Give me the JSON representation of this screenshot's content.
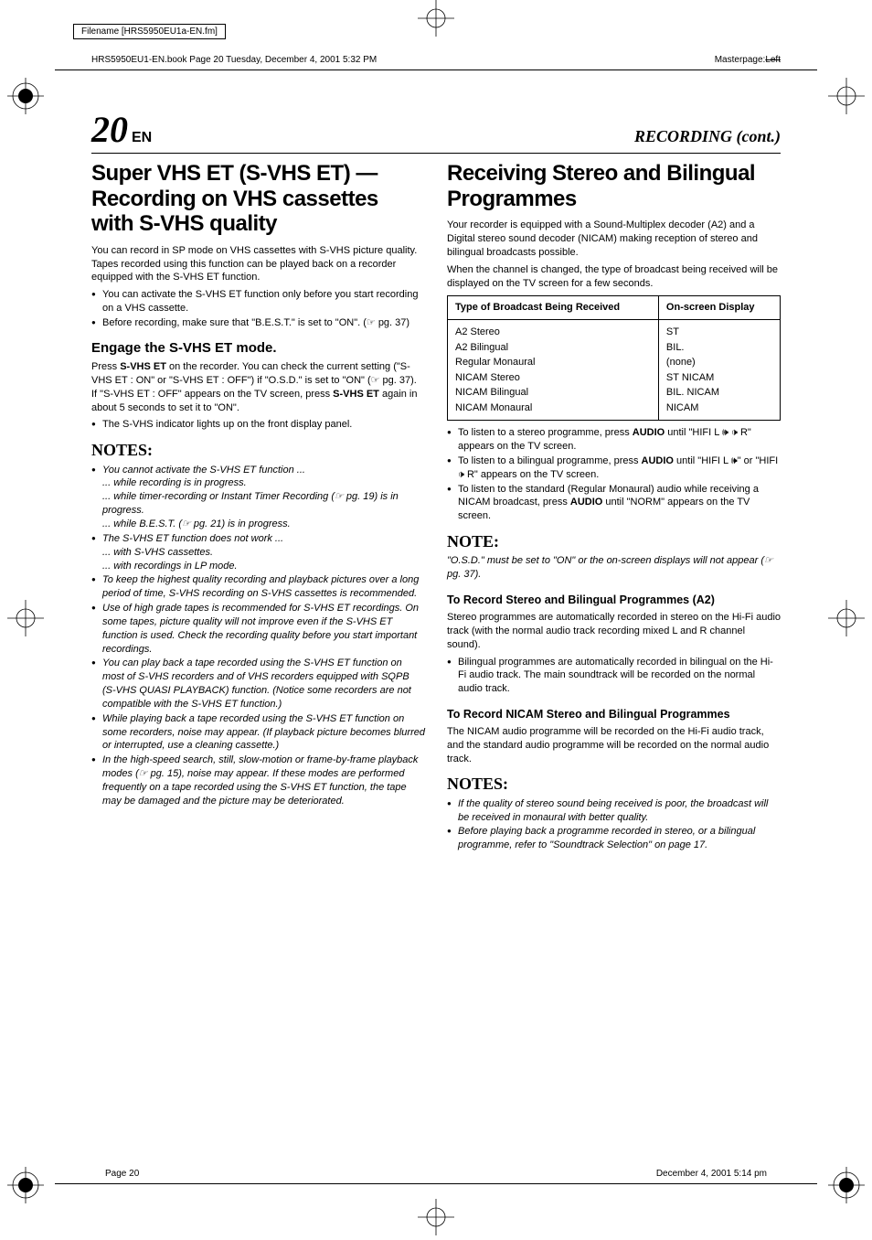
{
  "meta": {
    "filename": "Filename [HRS5950EU1a-EN.fm]",
    "book_header": "HRS5950EU1-EN.book  Page 20  Tuesday, December 4, 2001  5:32 PM",
    "masterpage_prefix": "Masterpage:",
    "masterpage_strike": "Left",
    "footer_left": "Page 20",
    "footer_right": "December 4, 2001  5:14 pm"
  },
  "header": {
    "page_number": "20",
    "page_suffix": "EN",
    "section": "RECORDING (cont.)"
  },
  "left": {
    "h1": "Super VHS ET (S-VHS ET) — Recording on VHS cassettes with S-VHS quality",
    "intro": "You can record in SP mode on VHS cassettes with S-VHS picture quality. Tapes recorded using this function can be played back on a recorder equipped with the S-VHS ET function.",
    "intro_bullets": [
      "You can activate the S-VHS ET function only before you start recording on a VHS cassette.",
      "Before recording, make sure that \"B.E.S.T.\" is set to \"ON\". (☞ pg. 37)"
    ],
    "engage_h2": "Engage the S-VHS ET mode.",
    "engage_p1": "Press S-VHS ET on the recorder. You can check the current setting (\"S-VHS ET : ON\" or \"S-VHS ET : OFF\") if \"O.S.D.\" is set to \"ON\" (☞ pg. 37). If \"S-VHS ET : OFF\" appears on the TV screen, press S-VHS ET again in about 5 seconds to set it to \"ON\".",
    "engage_bullets": [
      "The S-VHS indicator lights up on the front display panel."
    ],
    "notes_label": "NOTES:",
    "notes": [
      "You cannot activate the S-VHS ET function ...\n... while recording is in progress.\n... while timer-recording or Instant Timer Recording (☞ pg. 19) is in progress.\n... while B.E.S.T. (☞ pg. 21) is in progress.",
      "The S-VHS ET function does not work ...\n... with S-VHS cassettes.\n... with recordings in LP mode.",
      "To keep the highest quality recording and playback pictures over a long period of time, S-VHS recording on S-VHS cassettes is recommended.",
      "Use of high grade tapes is recommended for S-VHS ET recordings. On some tapes, picture quality will not improve even if the S-VHS ET function is used. Check the recording quality before you start important recordings.",
      "You can play back a tape recorded using the S-VHS ET function on most of S-VHS recorders and of VHS recorders equipped with SQPB (S-VHS QUASI PLAYBACK) function. (Notice some recorders are not compatible with the S-VHS ET function.)",
      "While playing back a tape recorded using the S-VHS ET function on some recorders, noise may appear. (If playback picture becomes blurred or interrupted, use a cleaning cassette.)",
      "In the high-speed search, still, slow-motion or frame-by-frame playback modes (☞ pg. 15), noise may appear. If these modes are performed frequently on a tape recorded using the S-VHS ET function, the tape may be damaged and the picture may be deteriorated."
    ]
  },
  "right": {
    "h1": "Receiving Stereo and Bilingual Programmes",
    "intro1": "Your recorder is equipped with a Sound-Multiplex decoder (A2) and a Digital stereo sound decoder (NICAM) making reception of stereo and bilingual broadcasts possible.",
    "intro2": "When the channel is changed, the type of broadcast being received will be displayed on the TV screen for a few seconds.",
    "table": {
      "th1": "Type of Broadcast Being Received",
      "th2": "On-screen Display",
      "rows": [
        [
          "A2 Stereo",
          "ST"
        ],
        [
          "A2 Bilingual",
          "BIL."
        ],
        [
          "Regular Monaural",
          "(none)"
        ],
        [
          "NICAM Stereo",
          "ST NICAM"
        ],
        [
          "NICAM Bilingual",
          "BIL. NICAM"
        ],
        [
          "NICAM Monaural",
          "NICAM"
        ]
      ]
    },
    "listen_bullets": [
      "To listen to a stereo programme, press AUDIO until \"HIFI L 🕪 🕩 R\" appears on the TV screen.",
      "To listen to a bilingual programme, press AUDIO until \"HIFI L 🕪\" or \"HIFI 🕩 R\" appears on the TV screen.",
      "To listen to the standard (Regular Monaural) audio while receiving a NICAM broadcast, press AUDIO until \"NORM\" appears on the TV screen."
    ],
    "note_label": "NOTE:",
    "note_text": "\"O.S.D.\" must be set to \"ON\" or the on-screen displays will not appear (☞ pg. 37).",
    "sub1_h": "To Record Stereo and Bilingual Programmes (A2)",
    "sub1_p": "Stereo programmes are automatically recorded in stereo on the Hi-Fi audio track (with the normal audio track recording mixed L and R channel sound).",
    "sub1_bullets": [
      "Bilingual programmes are automatically recorded in bilingual on the Hi-Fi audio track. The main soundtrack will be recorded on the normal audio track."
    ],
    "sub2_h": "To Record NICAM Stereo and Bilingual Programmes",
    "sub2_p": "The NICAM audio programme will be recorded on the Hi-Fi audio track, and the standard audio programme will be recorded on the normal audio track.",
    "notes2_label": "NOTES:",
    "notes2": [
      "If the quality of stereo sound being received is poor, the broadcast will be received in monaural with better quality.",
      "Before playing back a programme recorded in stereo, or a bilingual programme, refer to \"Soundtrack Selection\" on page 17."
    ]
  }
}
